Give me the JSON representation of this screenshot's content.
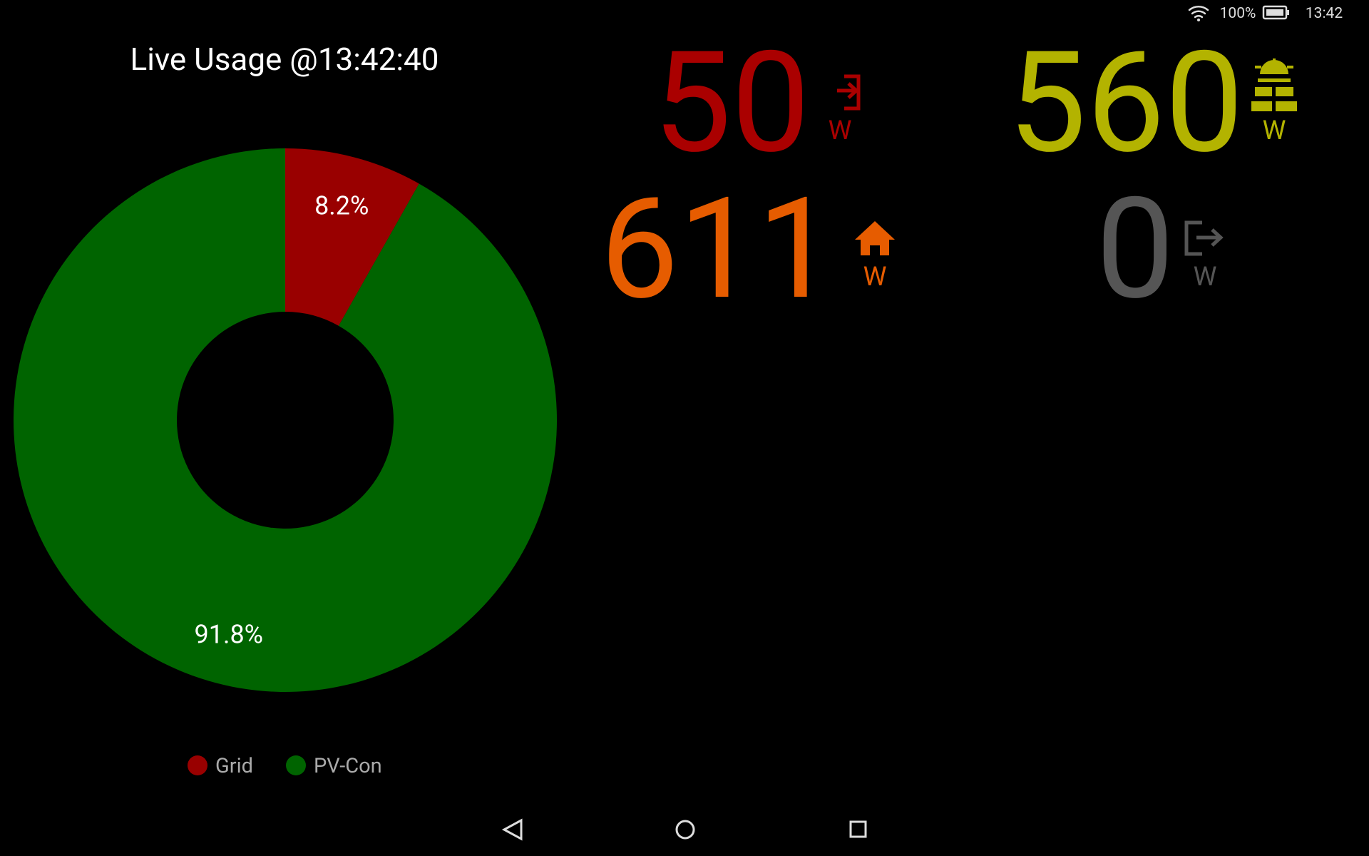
{
  "status_bar": {
    "battery": "100%",
    "time": "13:42"
  },
  "chart_data": {
    "type": "donut",
    "title": "Live Usage @13:42:40",
    "categories": [
      "Grid",
      "PV-Con"
    ],
    "values": [
      8.2,
      91.8
    ],
    "value_labels": [
      "8.2%",
      "91.8%"
    ],
    "colors": [
      "#990000",
      "#006400"
    ]
  },
  "readings": [
    {
      "value": 50,
      "unit": "W",
      "color": "#aa0000"
    },
    {
      "value": 560,
      "unit": "W",
      "color": "#b3b300"
    },
    {
      "value": 611,
      "unit": "W",
      "color": "#e65c00"
    },
    {
      "value": 0,
      "unit": "W",
      "color": "#555555"
    }
  ]
}
